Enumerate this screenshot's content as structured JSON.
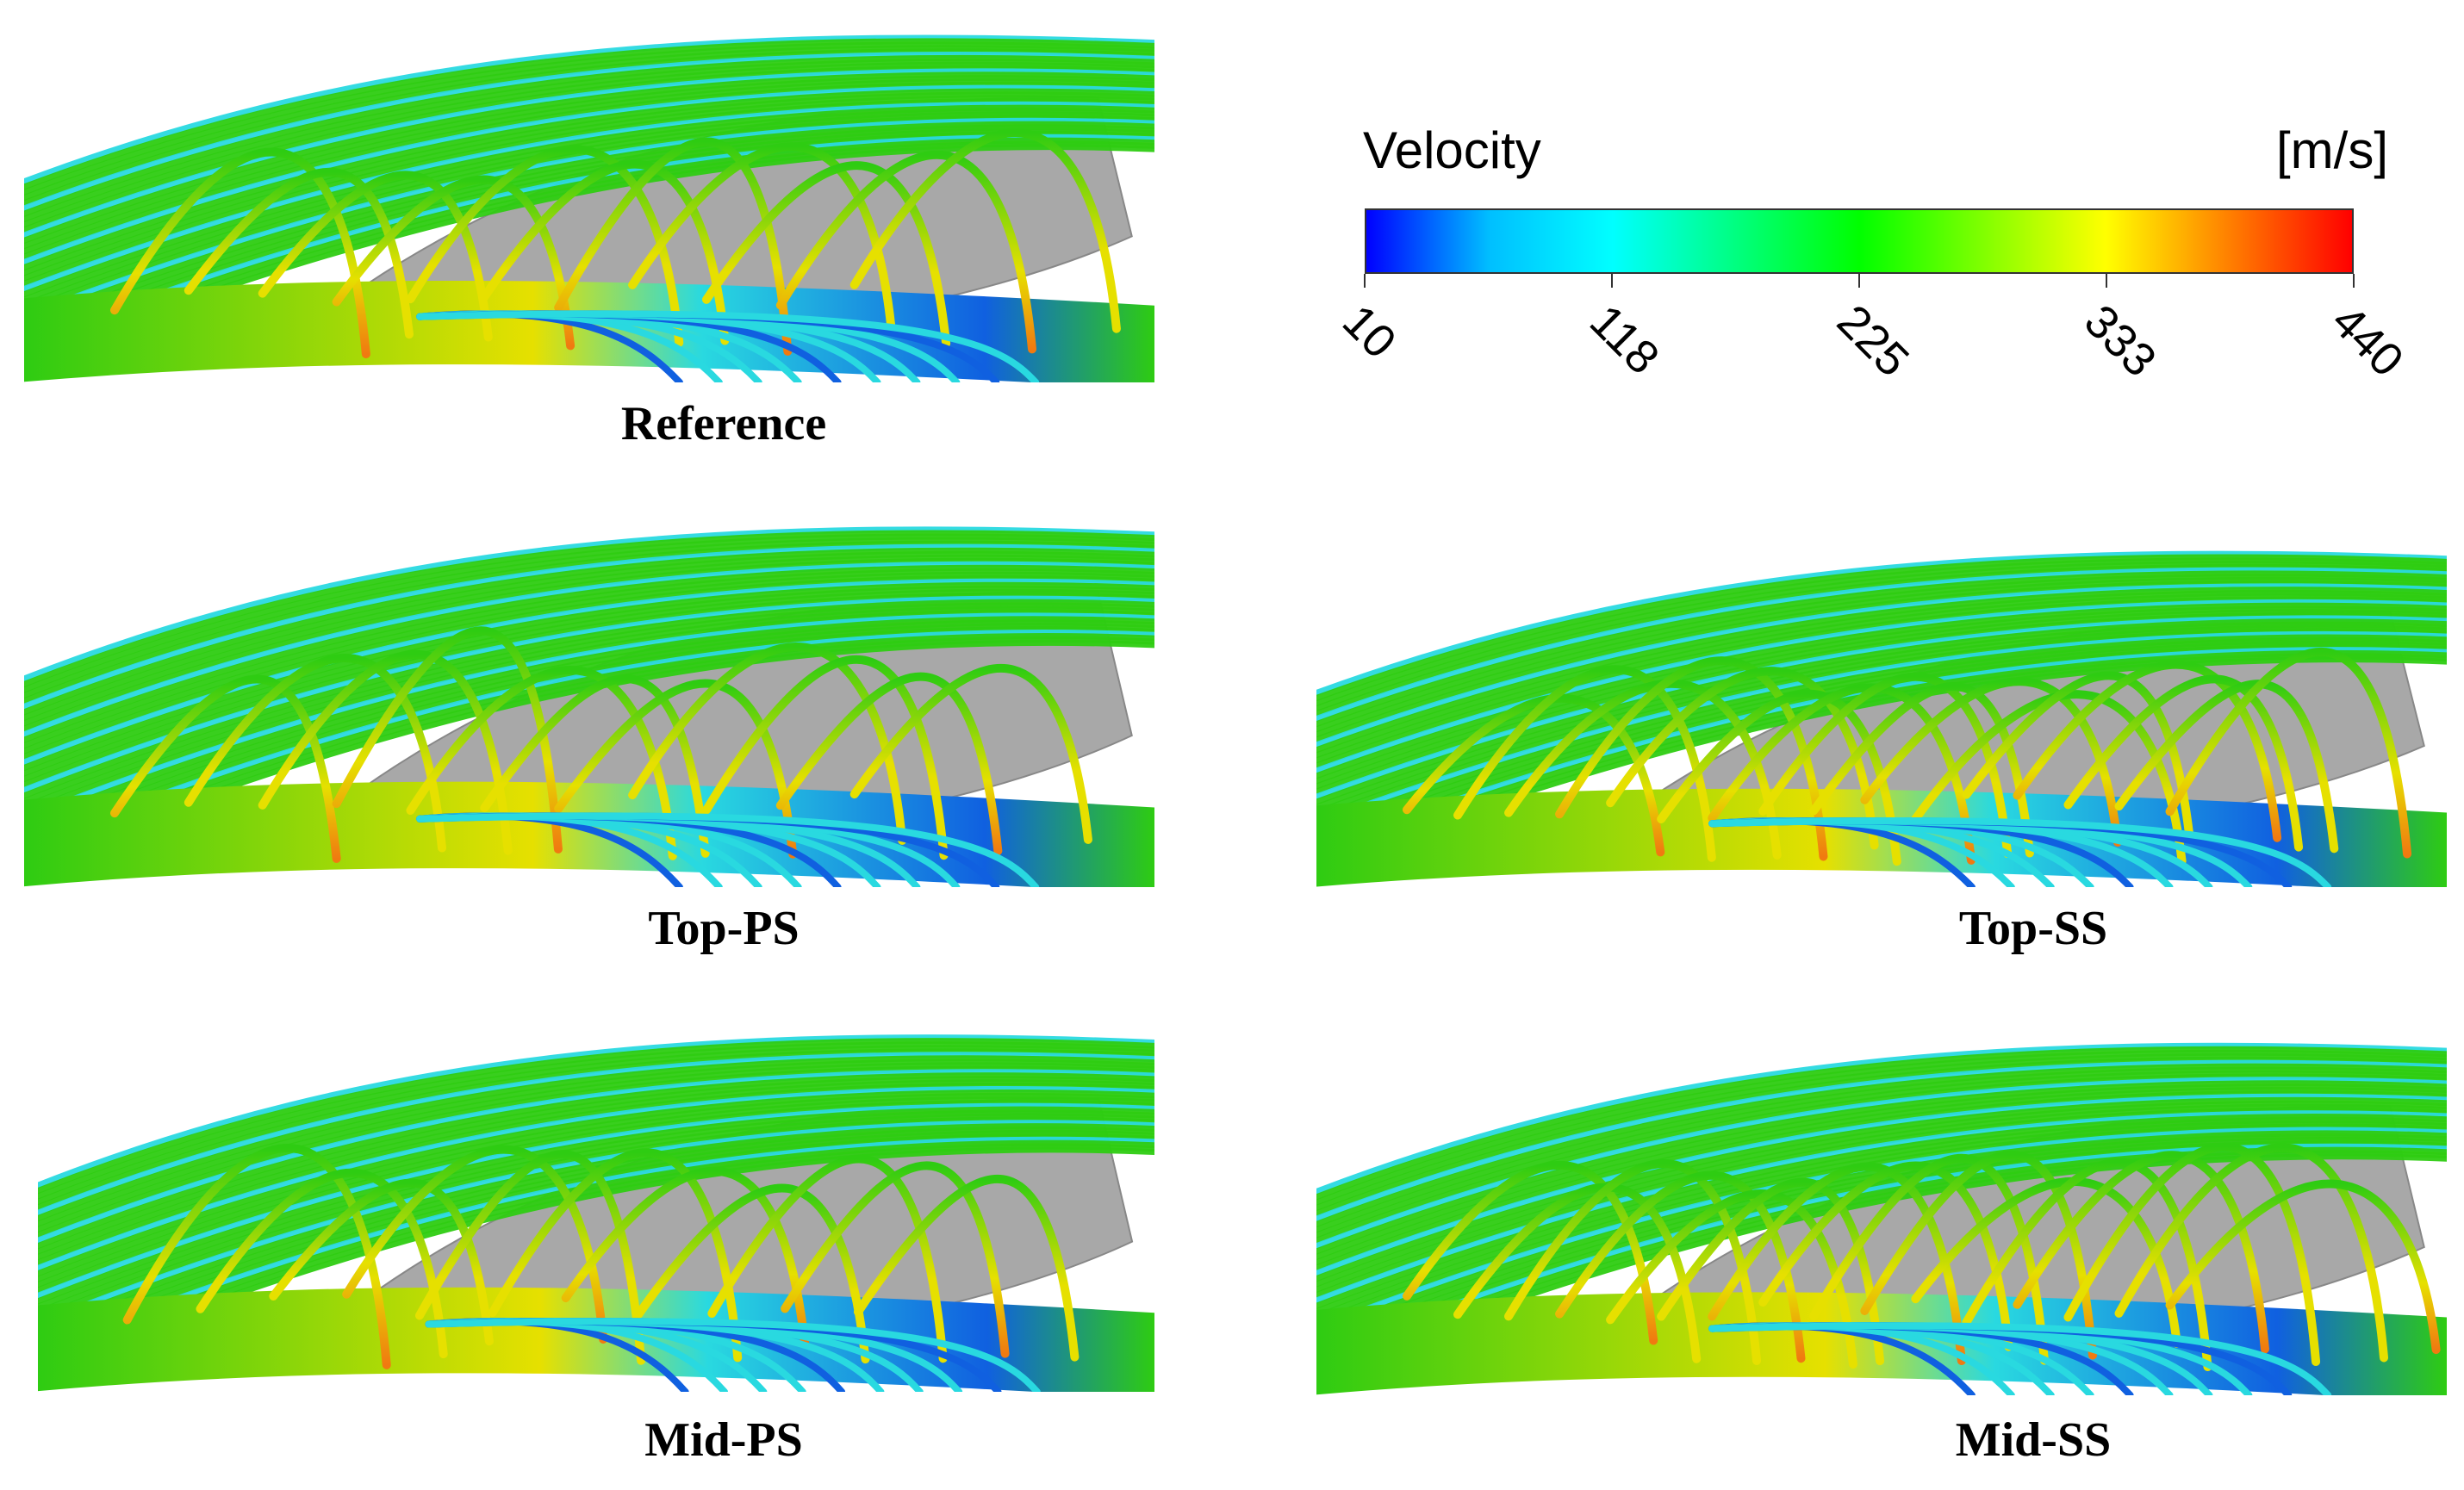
{
  "legend": {
    "title": "Velocity",
    "unit": "[m/s]",
    "ticks": [
      "10",
      "118",
      "225",
      "333",
      "440"
    ],
    "colors": [
      "#0000ff",
      "#00bfff",
      "#00ffff",
      "#00ff80",
      "#00ff00",
      "#80ff00",
      "#ffff00",
      "#ff8000",
      "#ff0000"
    ]
  },
  "panels": [
    {
      "id": "reference",
      "label": "Reference"
    },
    {
      "id": "top-ps",
      "label": "Top-PS"
    },
    {
      "id": "top-ss",
      "label": "Top-SS"
    },
    {
      "id": "mid-ps",
      "label": "Mid-PS"
    },
    {
      "id": "mid-ss",
      "label": "Mid-SS"
    }
  ],
  "colors": {
    "blade": "#a8a8a8",
    "streamline_green": "#2ecc12",
    "streamline_cyan": "#29d9e0",
    "streamline_yellow": "#e6e000",
    "streamline_orange": "#f07a10",
    "streamline_blue": "#1060e0"
  }
}
